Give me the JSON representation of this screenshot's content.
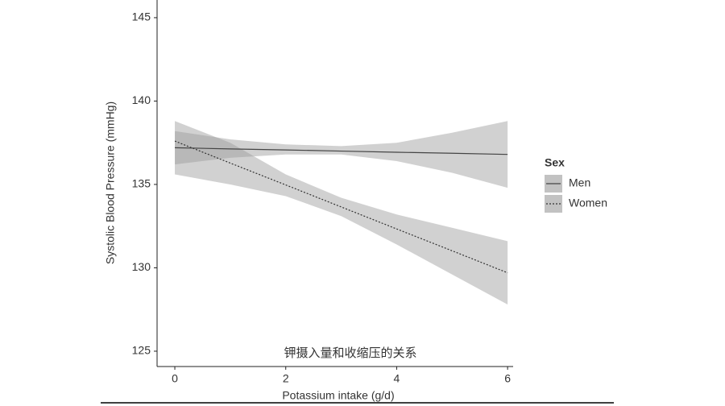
{
  "chart_data": {
    "type": "ribbon-line",
    "x_label": "Potassium intake (g/d)",
    "y_label": "Systolic Blood Pressure (mmHg)",
    "annotation": "钾摄入量和收缩压的关系",
    "legend_title": "Sex",
    "legend_position": "right",
    "x": [
      0,
      1,
      2,
      3,
      4,
      5,
      6
    ],
    "series": [
      {
        "name": "Men",
        "color": "#444444",
        "dash": "solid",
        "band_color": "#9a9a9a",
        "values": [
          137.2,
          137.13,
          137.07,
          137.0,
          136.93,
          136.87,
          136.8
        ],
        "lower": [
          136.2,
          136.6,
          136.8,
          136.8,
          136.4,
          135.7,
          134.8
        ],
        "upper": [
          138.2,
          137.7,
          137.4,
          137.3,
          137.5,
          138.1,
          138.8
        ]
      },
      {
        "name": "Women",
        "color": "#333333",
        "dash": "dotted",
        "band_color": "#9a9a9a",
        "values": [
          137.6,
          136.28,
          134.97,
          133.65,
          132.33,
          131.02,
          129.7
        ],
        "lower": [
          135.6,
          135.0,
          134.3,
          133.1,
          131.4,
          129.6,
          127.8
        ],
        "upper": [
          138.8,
          137.5,
          135.6,
          134.2,
          133.2,
          132.4,
          131.6
        ]
      }
    ],
    "xlim": [
      -0.32,
      6.1
    ],
    "xticks": [
      0,
      2,
      4,
      6
    ],
    "ylim": [
      124.08,
      146.06
    ],
    "yticks": [
      125,
      130,
      135,
      140,
      145
    ],
    "grid": false
  }
}
